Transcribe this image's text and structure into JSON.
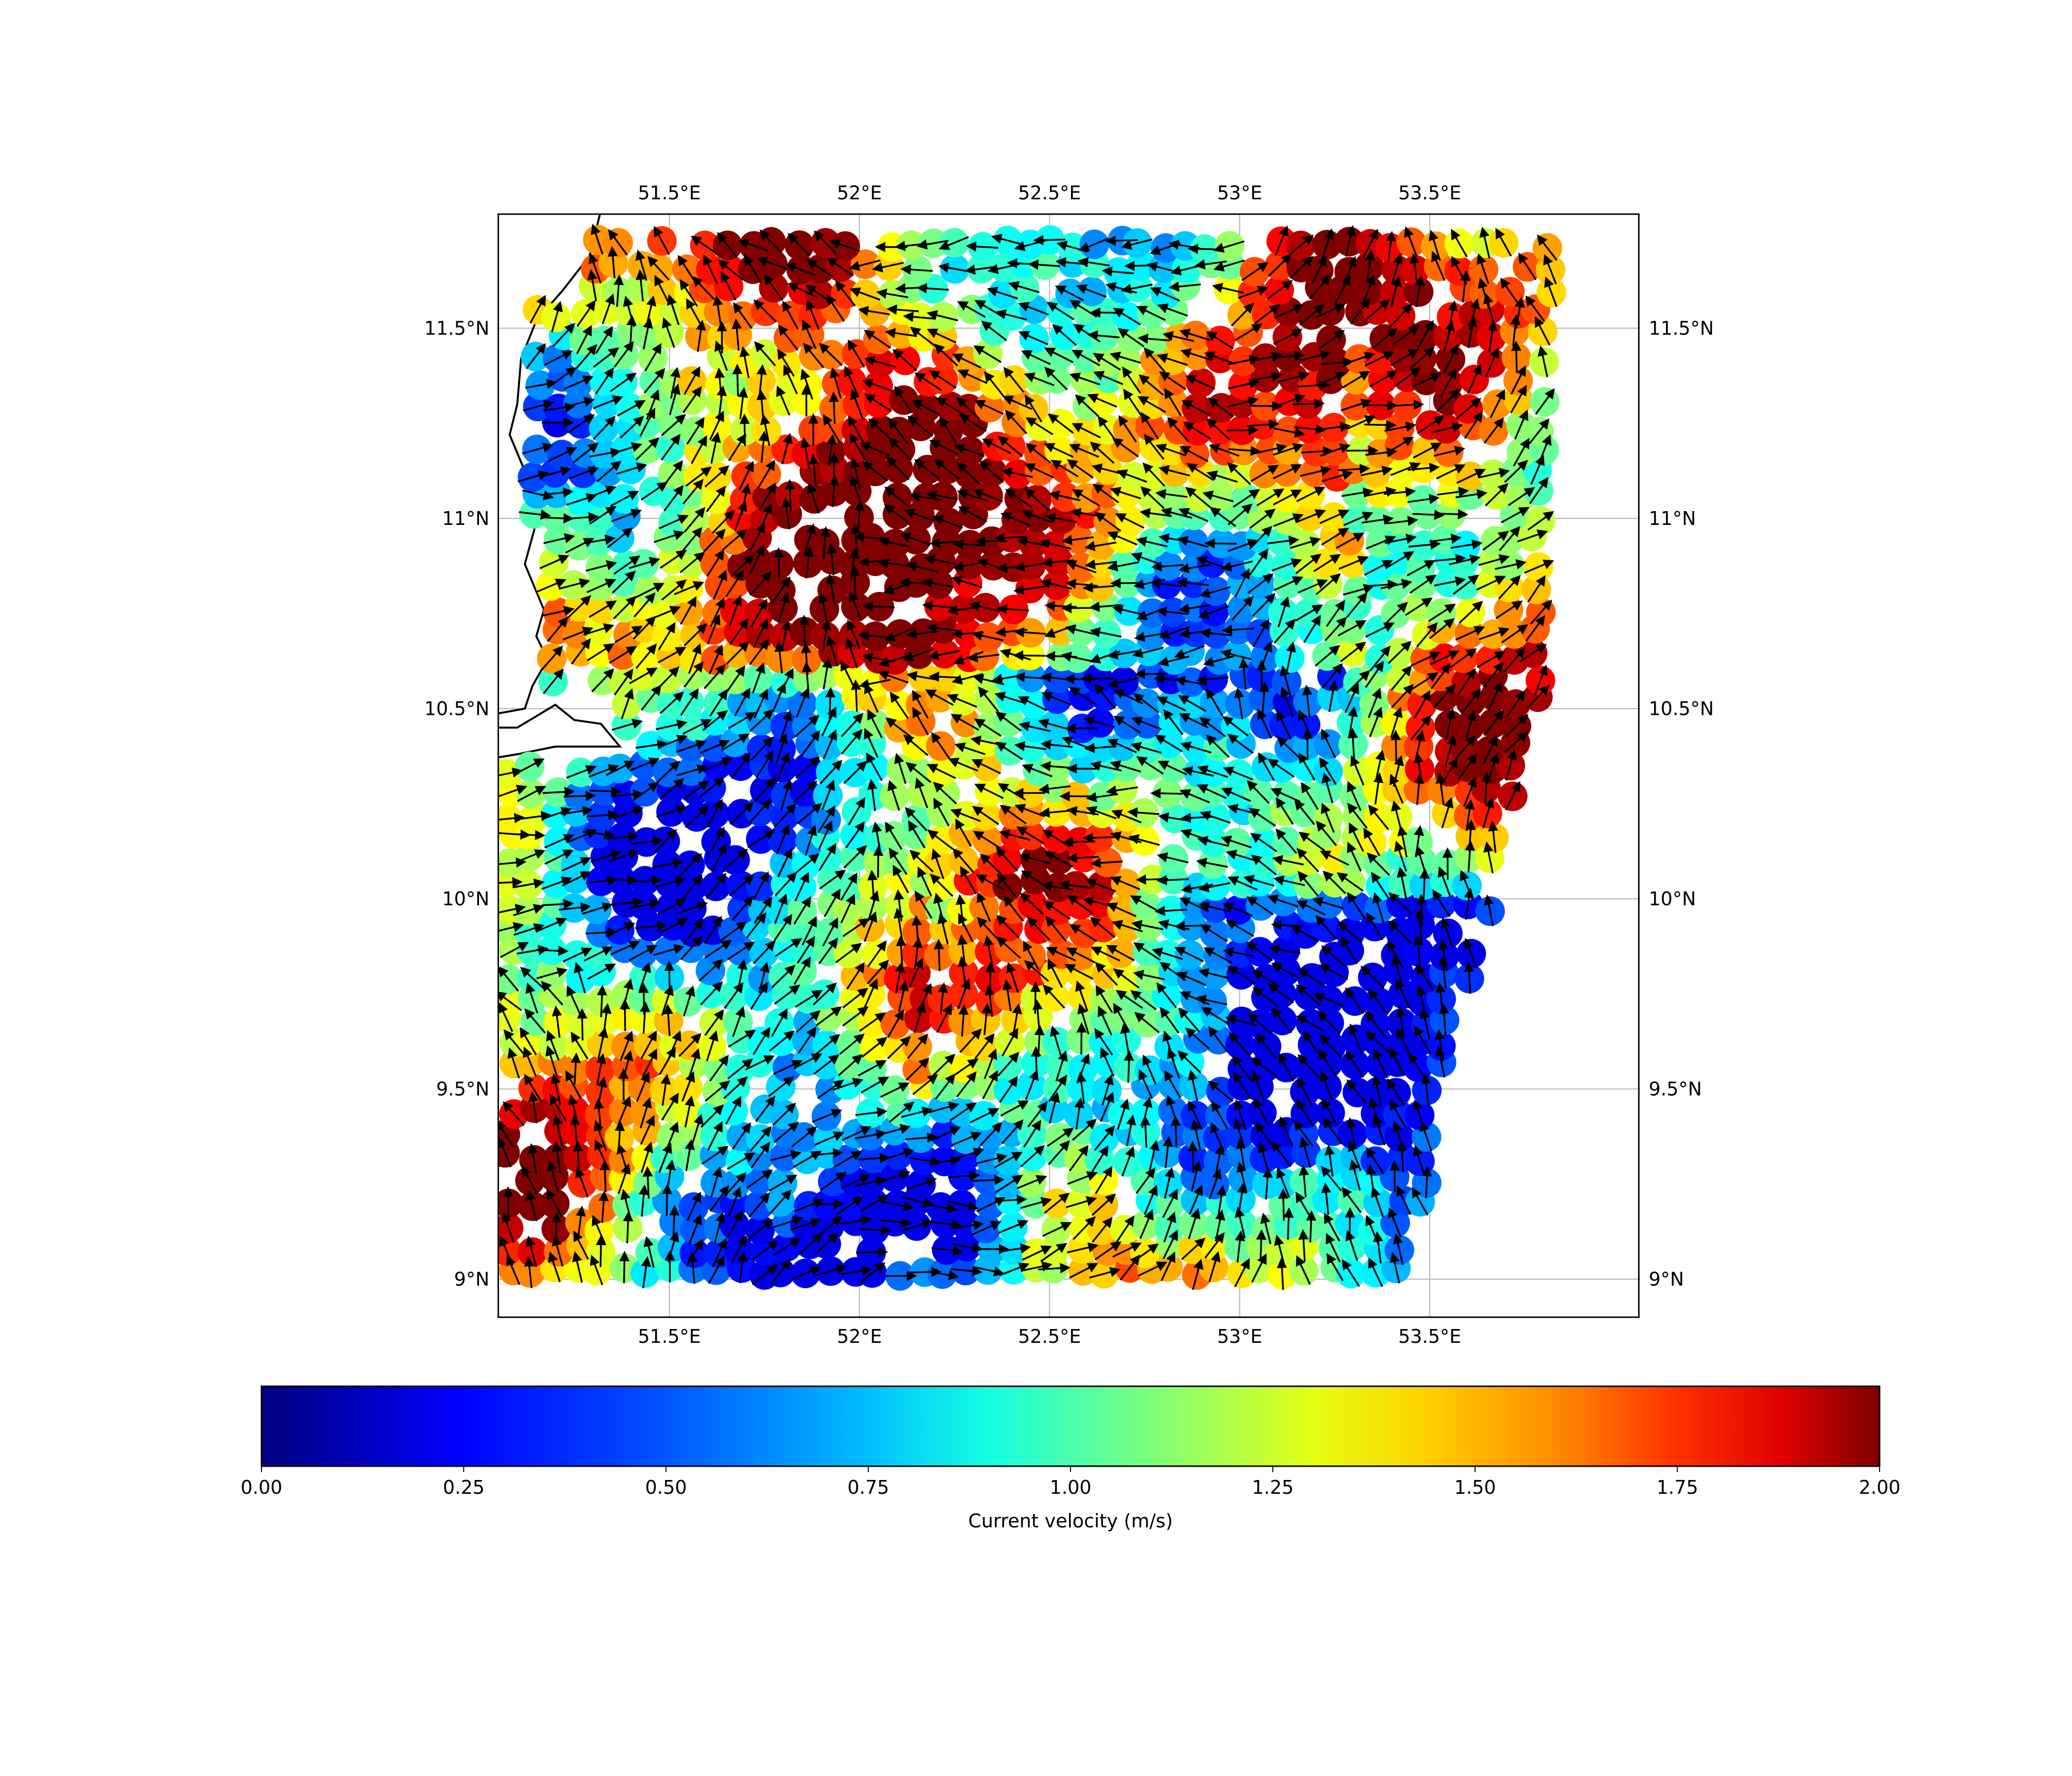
{
  "chart_data": {
    "type": "scatter",
    "subtype": "map-quiver",
    "title": "",
    "colorbar": {
      "label": "Current velocity (m/s)",
      "range": [
        0,
        2
      ],
      "colormap": "jet",
      "ticks": [
        0.0,
        0.25,
        0.5,
        0.75,
        1.0,
        1.25,
        1.5,
        1.75,
        2.0
      ],
      "tick_labels": [
        "0.00",
        "0.25",
        "0.50",
        "0.75",
        "1.00",
        "1.25",
        "1.50",
        "1.75",
        "2.00"
      ],
      "orientation": "horizontal",
      "placement": "bottom"
    },
    "x_axis": {
      "quantity": "longitude",
      "range": [
        51.05,
        54.05
      ],
      "ticks": [
        51.5,
        52.0,
        52.5,
        53.0,
        53.5
      ],
      "tick_labels": [
        "51.5°E",
        "52°E",
        "52.5°E",
        "53°E",
        "53.5°E"
      ],
      "label_sides": [
        "top",
        "bottom"
      ]
    },
    "y_axis": {
      "quantity": "latitude",
      "range": [
        8.9,
        11.8
      ],
      "ticks": [
        9.0,
        9.5,
        10.0,
        10.5,
        11.0,
        11.5
      ],
      "tick_labels": [
        "9°N",
        "9.5°N",
        "10°N",
        "10.5°N",
        "11°N",
        "11.5°N"
      ],
      "label_sides": [
        "left",
        "right"
      ]
    },
    "grid": true,
    "sampling": {
      "lon_range": [
        51.08,
        53.82
      ],
      "lat_range": [
        9.02,
        11.73
      ],
      "spacing_deg": 0.06,
      "velocity_range_ms": [
        0.2,
        2.0
      ],
      "eastern_limit": [
        [
          9.0,
          53.45
        ],
        [
          9.5,
          53.55
        ],
        [
          10.0,
          53.68
        ],
        [
          10.5,
          53.78
        ],
        [
          11.7,
          53.84
        ]
      ]
    },
    "coastline": [
      [
        51.32,
        11.81
      ],
      [
        51.29,
        11.69
      ],
      [
        51.22,
        11.6
      ],
      [
        51.15,
        11.52
      ],
      [
        51.11,
        11.42
      ],
      [
        51.1,
        11.3
      ],
      [
        51.08,
        11.22
      ],
      [
        51.13,
        11.1
      ],
      [
        51.15,
        10.99
      ],
      [
        51.12,
        10.88
      ],
      [
        51.17,
        10.76
      ],
      [
        51.15,
        10.69
      ],
      [
        51.18,
        10.63
      ],
      [
        51.14,
        10.56
      ],
      [
        51.12,
        10.5
      ],
      [
        51.01,
        10.48
      ],
      [
        51.02,
        10.45
      ],
      [
        51.1,
        10.45
      ],
      [
        51.15,
        10.48
      ],
      [
        51.2,
        10.51
      ],
      [
        51.25,
        10.47
      ],
      [
        51.32,
        10.46
      ],
      [
        51.37,
        10.4
      ],
      [
        51.2,
        10.4
      ],
      [
        51.1,
        10.38
      ],
      [
        51.04,
        10.37
      ],
      [
        51.0,
        10.36
      ]
    ]
  }
}
